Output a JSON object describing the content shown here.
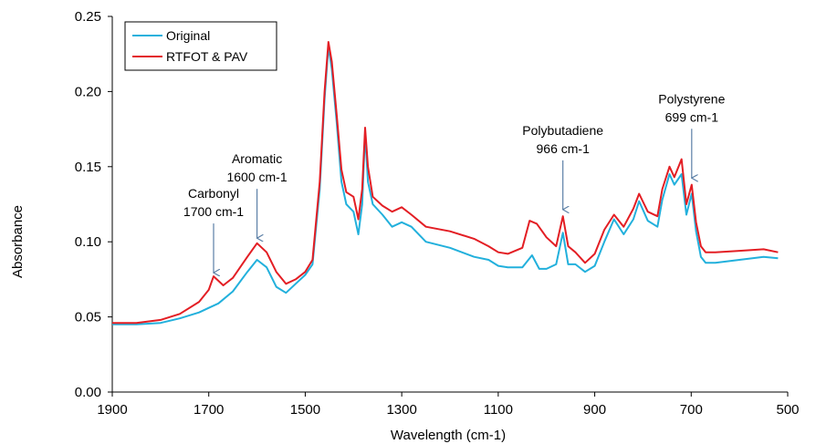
{
  "chart_data": {
    "type": "line",
    "title": "",
    "xlabel": "Wavelength (cm-1)",
    "ylabel": "Absorbance",
    "xlim": [
      1900,
      500
    ],
    "ylim": [
      0,
      0.25
    ],
    "x_reversed": true,
    "x_ticks": [
      1900,
      1700,
      1500,
      1300,
      1100,
      900,
      700,
      500
    ],
    "x_tick_labels": [
      "1900",
      "1700",
      "1500",
      "1300",
      "1100",
      "900",
      "700",
      "500"
    ],
    "y_ticks": [
      0,
      0.05,
      0.1,
      0.15,
      0.2,
      0.25
    ],
    "y_tick_labels": [
      "0.00",
      "0.05",
      "0.10",
      "0.15",
      "0.20",
      "0.25"
    ],
    "grid": false,
    "legend_position": "top-left",
    "series": [
      {
        "name": "Original",
        "color": "#22b0dc",
        "points": [
          [
            1900,
            0.045
          ],
          [
            1850,
            0.045
          ],
          [
            1800,
            0.046
          ],
          [
            1760,
            0.049
          ],
          [
            1720,
            0.053
          ],
          [
            1700,
            0.056
          ],
          [
            1680,
            0.059
          ],
          [
            1650,
            0.067
          ],
          [
            1620,
            0.08
          ],
          [
            1600,
            0.088
          ],
          [
            1580,
            0.083
          ],
          [
            1560,
            0.07
          ],
          [
            1540,
            0.066
          ],
          [
            1520,
            0.072
          ],
          [
            1500,
            0.078
          ],
          [
            1485,
            0.085
          ],
          [
            1470,
            0.135
          ],
          [
            1460,
            0.195
          ],
          [
            1452,
            0.23
          ],
          [
            1445,
            0.215
          ],
          [
            1435,
            0.18
          ],
          [
            1425,
            0.14
          ],
          [
            1415,
            0.125
          ],
          [
            1400,
            0.12
          ],
          [
            1390,
            0.105
          ],
          [
            1382,
            0.125
          ],
          [
            1376,
            0.172
          ],
          [
            1370,
            0.14
          ],
          [
            1360,
            0.125
          ],
          [
            1340,
            0.118
          ],
          [
            1320,
            0.11
          ],
          [
            1300,
            0.113
          ],
          [
            1280,
            0.11
          ],
          [
            1250,
            0.1
          ],
          [
            1200,
            0.096
          ],
          [
            1150,
            0.09
          ],
          [
            1120,
            0.088
          ],
          [
            1100,
            0.084
          ],
          [
            1080,
            0.083
          ],
          [
            1050,
            0.083
          ],
          [
            1030,
            0.091
          ],
          [
            1015,
            0.082
          ],
          [
            1000,
            0.082
          ],
          [
            980,
            0.085
          ],
          [
            966,
            0.106
          ],
          [
            955,
            0.085
          ],
          [
            940,
            0.085
          ],
          [
            920,
            0.08
          ],
          [
            900,
            0.084
          ],
          [
            880,
            0.1
          ],
          [
            860,
            0.115
          ],
          [
            840,
            0.105
          ],
          [
            820,
            0.115
          ],
          [
            808,
            0.127
          ],
          [
            790,
            0.114
          ],
          [
            770,
            0.11
          ],
          [
            760,
            0.128
          ],
          [
            745,
            0.145
          ],
          [
            735,
            0.138
          ],
          [
            720,
            0.145
          ],
          [
            710,
            0.118
          ],
          [
            699,
            0.132
          ],
          [
            690,
            0.107
          ],
          [
            680,
            0.09
          ],
          [
            670,
            0.086
          ],
          [
            650,
            0.086
          ],
          [
            600,
            0.088
          ],
          [
            550,
            0.09
          ],
          [
            520,
            0.089
          ]
        ]
      },
      {
        "name": "RTFOT & PAV",
        "color": "#e31e24",
        "points": [
          [
            1900,
            0.046
          ],
          [
            1850,
            0.046
          ],
          [
            1800,
            0.048
          ],
          [
            1760,
            0.052
          ],
          [
            1720,
            0.06
          ],
          [
            1700,
            0.068
          ],
          [
            1690,
            0.077
          ],
          [
            1680,
            0.074
          ],
          [
            1670,
            0.071
          ],
          [
            1650,
            0.076
          ],
          [
            1620,
            0.09
          ],
          [
            1600,
            0.099
          ],
          [
            1580,
            0.093
          ],
          [
            1560,
            0.08
          ],
          [
            1540,
            0.072
          ],
          [
            1520,
            0.075
          ],
          [
            1500,
            0.08
          ],
          [
            1485,
            0.088
          ],
          [
            1470,
            0.14
          ],
          [
            1460,
            0.2
          ],
          [
            1452,
            0.233
          ],
          [
            1445,
            0.22
          ],
          [
            1435,
            0.185
          ],
          [
            1425,
            0.148
          ],
          [
            1415,
            0.133
          ],
          [
            1400,
            0.13
          ],
          [
            1390,
            0.115
          ],
          [
            1382,
            0.135
          ],
          [
            1376,
            0.176
          ],
          [
            1370,
            0.15
          ],
          [
            1360,
            0.13
          ],
          [
            1340,
            0.124
          ],
          [
            1320,
            0.12
          ],
          [
            1300,
            0.123
          ],
          [
            1280,
            0.118
          ],
          [
            1250,
            0.11
          ],
          [
            1200,
            0.107
          ],
          [
            1150,
            0.102
          ],
          [
            1120,
            0.097
          ],
          [
            1100,
            0.093
          ],
          [
            1080,
            0.092
          ],
          [
            1050,
            0.096
          ],
          [
            1035,
            0.114
          ],
          [
            1020,
            0.112
          ],
          [
            1000,
            0.103
          ],
          [
            980,
            0.097
          ],
          [
            966,
            0.117
          ],
          [
            955,
            0.097
          ],
          [
            940,
            0.093
          ],
          [
            920,
            0.086
          ],
          [
            900,
            0.092
          ],
          [
            880,
            0.108
          ],
          [
            860,
            0.118
          ],
          [
            840,
            0.11
          ],
          [
            820,
            0.122
          ],
          [
            808,
            0.132
          ],
          [
            790,
            0.12
          ],
          [
            770,
            0.117
          ],
          [
            760,
            0.135
          ],
          [
            745,
            0.15
          ],
          [
            735,
            0.143
          ],
          [
            720,
            0.155
          ],
          [
            710,
            0.125
          ],
          [
            699,
            0.138
          ],
          [
            690,
            0.113
          ],
          [
            680,
            0.097
          ],
          [
            670,
            0.093
          ],
          [
            650,
            0.093
          ],
          [
            600,
            0.094
          ],
          [
            550,
            0.095
          ],
          [
            520,
            0.093
          ]
        ]
      }
    ],
    "annotations": [
      {
        "lines": [
          "Carbonyl",
          "1700 cm-1"
        ],
        "x": 1690,
        "arrow_y": 0.077
      },
      {
        "lines": [
          "Aromatic",
          "1600 cm-1"
        ],
        "x": 1600,
        "arrow_y": 0.1
      },
      {
        "lines": [
          "Polybutadiene",
          "966 cm-1"
        ],
        "x": 966,
        "arrow_y": 0.119
      },
      {
        "lines": [
          "Polystyrene",
          "699 cm-1"
        ],
        "x": 699,
        "arrow_y": 0.14
      }
    ]
  }
}
